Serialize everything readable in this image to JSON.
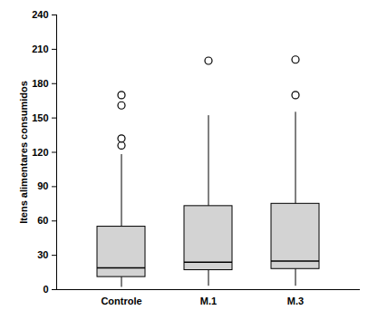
{
  "chart_data": {
    "type": "box",
    "y_label": "Itens alimentares consumidos",
    "categories": [
      "Controle",
      "M.1",
      "M.3"
    ],
    "min": [
      2,
      3,
      3
    ],
    "q1": [
      11,
      17,
      18
    ],
    "median": [
      19,
      24,
      25
    ],
    "q3": [
      55,
      73,
      75
    ],
    "max": [
      118,
      152,
      155
    ],
    "outliers": [
      [
        126,
        132,
        161,
        170
      ],
      [
        200
      ],
      [
        170,
        201
      ]
    ],
    "color": "#d3d3d3",
    "ylim": [
      0,
      240
    ],
    "yticks": [
      0,
      30,
      60,
      90,
      120,
      150,
      180,
      210,
      240
    ],
    "grid": false
  }
}
